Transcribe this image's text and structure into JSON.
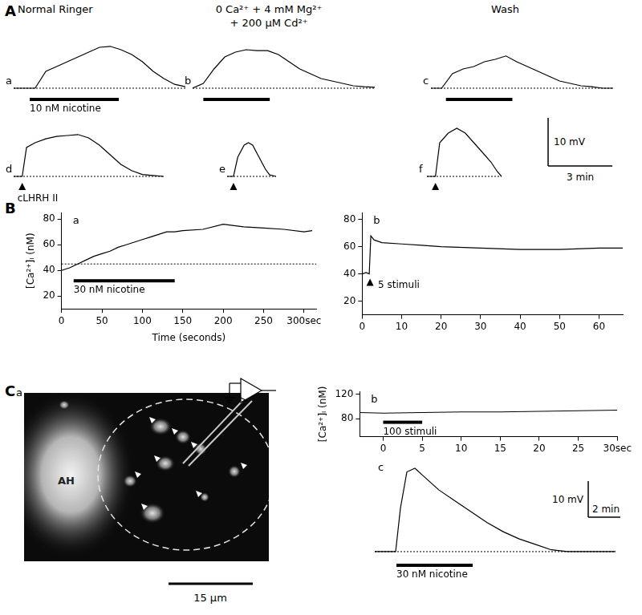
{
  "figure": {
    "panels": [
      "A",
      "B",
      "C"
    ],
    "conditions": [
      "Normal Ringer",
      [
        "0 Ca²⁺ + 4 mM Mg²⁺",
        "+ 200 µM Cd²⁺"
      ],
      "Wash"
    ],
    "scale_bars": [
      {
        "y": 10,
        "y_label": "10 mV",
        "x": 3,
        "x_label": "3 min"
      },
      {
        "y": 10,
        "y_label": "10 mV",
        "x": 2,
        "x_label": "2 min"
      }
    ],
    "image": {
      "title": "a",
      "label": "AH",
      "scale_bar_label": "15 µm"
    }
  },
  "chart_data": [
    {
      "type": "line",
      "title": "a",
      "tick_labels": false,
      "color": "#000000",
      "x": [
        0,
        0.5,
        1,
        1.5,
        2,
        2.5,
        3,
        3.5,
        4,
        4.5,
        5,
        5.5,
        6,
        6.5,
        7,
        7.5,
        8
      ],
      "values": [
        0,
        0,
        0,
        3.5,
        4.5,
        5.5,
        6.5,
        7.5,
        8.5,
        8.7,
        8,
        7,
        5.5,
        3.5,
        2,
        0.8,
        0.3
      ],
      "xlim": [
        0,
        8
      ],
      "ylim": [
        -1,
        11
      ],
      "baseline": 0,
      "application": {
        "label": "10 nM nicotine",
        "start": 0.75,
        "end": 4.9
      }
    },
    {
      "type": "line",
      "title": "b",
      "tick_labels": false,
      "color": "#000000",
      "x": [
        0,
        0.5,
        1,
        1.5,
        2,
        2.5,
        3,
        3.5,
        4,
        4.5,
        5,
        5.5,
        6,
        6.5,
        7,
        7.5,
        8,
        8.5
      ],
      "values": [
        0,
        1,
        4,
        6.5,
        7.5,
        8,
        7.8,
        7.8,
        7,
        5.5,
        4,
        3,
        2,
        1.5,
        1,
        0.5,
        0.3,
        0.2
      ],
      "xlim": [
        0,
        8.5
      ],
      "ylim": [
        -1,
        11
      ],
      "baseline": 0,
      "application": {
        "start": 0.5,
        "end": 3.6
      }
    },
    {
      "type": "line",
      "title": "c",
      "tick_labels": false,
      "color": "#000000",
      "x": [
        0,
        0.5,
        1,
        1.5,
        2,
        2.5,
        3,
        3.5,
        4,
        4.5,
        5,
        5.5,
        6,
        6.5,
        7,
        7.5,
        8,
        8.5
      ],
      "values": [
        0,
        0,
        3,
        4,
        4.5,
        5.5,
        6,
        6.7,
        5.5,
        4.5,
        3.5,
        2.5,
        1.5,
        1,
        0.5,
        0.3,
        0,
        0
      ],
      "xlim": [
        0,
        8.5
      ],
      "ylim": [
        -1,
        11
      ],
      "baseline": 0,
      "application": {
        "start": 0.7,
        "end": 3.8
      }
    },
    {
      "type": "line",
      "title": "d",
      "tick_labels": false,
      "color": "#000000",
      "x": [
        0,
        0.4,
        0.6,
        1,
        1.5,
        2,
        2.5,
        3,
        3.5,
        4,
        4.5,
        5,
        5.5,
        6,
        6.5,
        7
      ],
      "values": [
        0,
        0,
        6,
        7,
        7.8,
        8.3,
        8.5,
        8.7,
        8,
        6.5,
        4.5,
        2.5,
        1.2,
        0.4,
        0.2,
        0
      ],
      "xlim": [
        0,
        7
      ],
      "ylim": [
        -1,
        11
      ],
      "baseline": 0,
      "stimulus": {
        "label": "cLHRH II",
        "at": 0.4
      }
    },
    {
      "type": "line",
      "title": "e",
      "tick_labels": false,
      "color": "#000000",
      "x": [
        0,
        0.3,
        0.5,
        0.8,
        1,
        1.2,
        1.5,
        1.8,
        2,
        2.3
      ],
      "values": [
        0,
        0,
        4,
        6.5,
        7,
        6.5,
        4,
        1.5,
        0.3,
        0
      ],
      "xlim": [
        0,
        2.3
      ],
      "ylim": [
        -1,
        11
      ],
      "baseline": 0,
      "stimulus": {
        "at": 0.3
      }
    },
    {
      "type": "line",
      "title": "f",
      "tick_labels": false,
      "color": "#000000",
      "x": [
        0,
        0.4,
        0.6,
        1,
        1.4,
        1.8,
        2.2,
        2.6,
        3,
        3.3,
        3.5
      ],
      "values": [
        0,
        0,
        7,
        9,
        10,
        9,
        7,
        5,
        3,
        1,
        0
      ],
      "xlim": [
        0,
        3.5
      ],
      "ylim": [
        -1,
        11
      ],
      "baseline": 0,
      "stimulus": {
        "at": 0.4
      }
    },
    {
      "type": "line",
      "title": "a",
      "color": "#000000",
      "grid": false,
      "xlabel": "Time (seconds)",
      "ylabel": "[Ca²⁺]ᵢ (nM)",
      "x": [
        0,
        10,
        20,
        30,
        40,
        50,
        60,
        70,
        80,
        90,
        100,
        110,
        120,
        130,
        140,
        150,
        175,
        200,
        225,
        250,
        275,
        300,
        310
      ],
      "values": [
        40,
        42,
        45,
        48,
        51,
        53,
        55,
        58,
        60,
        62,
        64,
        66,
        68,
        70,
        70,
        71,
        72,
        76,
        74,
        73,
        72,
        70,
        71
      ],
      "xlim": [
        0,
        315
      ],
      "ylim": [
        10,
        85
      ],
      "xticks": [
        0,
        50,
        100,
        150,
        200,
        250,
        {
          "value": 300,
          "label": "300sec"
        }
      ],
      "yticks": [
        20,
        40,
        60,
        80
      ],
      "baseline": 45,
      "application": {
        "label": "30 nM nicotine",
        "start": 15,
        "end": 140
      }
    },
    {
      "type": "line",
      "title": "b",
      "color": "#000000",
      "grid": false,
      "x": [
        0,
        1,
        1.8,
        2.2,
        3,
        5,
        10,
        15,
        20,
        30,
        40,
        50,
        60,
        66
      ],
      "values": [
        40,
        41,
        40,
        68,
        65,
        63,
        62,
        61,
        60,
        59,
        58,
        58,
        59,
        59
      ],
      "xlim": [
        0,
        66
      ],
      "ylim": [
        10,
        85
      ],
      "xticks": [
        0,
        10,
        20,
        30,
        40,
        50,
        60
      ],
      "yticks": [
        20,
        40,
        60,
        80
      ],
      "stimulus": {
        "label": "5 stimuli",
        "at": 2
      }
    },
    {
      "type": "line",
      "title": "b",
      "color": "#000000",
      "grid": false,
      "ylabel": "[Ca²⁺]ᵢ (nM)",
      "x": [
        -3,
        0,
        5,
        10,
        15,
        20,
        25,
        30
      ],
      "values": [
        90,
        89,
        90,
        91,
        91,
        92,
        93,
        94
      ],
      "xlim": [
        -3,
        30
      ],
      "ylim": [
        50,
        125
      ],
      "xticks": [
        0,
        5,
        10,
        15,
        20,
        25,
        {
          "value": 30,
          "label": "30sec"
        }
      ],
      "yticks": [
        80,
        120
      ],
      "application": {
        "label": "100 stimuli",
        "start": 0,
        "end": 5
      }
    },
    {
      "type": "line",
      "title": "c",
      "tick_labels": false,
      "color": "#000000",
      "x": [
        0,
        1.3,
        1.6,
        2,
        2.5,
        3,
        3.5,
        4,
        5,
        6,
        7,
        8,
        9,
        10,
        11,
        12,
        13,
        14,
        15
      ],
      "values": [
        0,
        0,
        12,
        22,
        23,
        21,
        19,
        17,
        14,
        11,
        8,
        5.5,
        3.5,
        2,
        0.5,
        0,
        0,
        0,
        0
      ],
      "xlim": [
        0,
        15
      ],
      "ylim": [
        -2,
        25
      ],
      "baseline": 0,
      "application": {
        "label": "30 nM nicotine",
        "start": 1.35,
        "end": 6.1
      }
    }
  ]
}
